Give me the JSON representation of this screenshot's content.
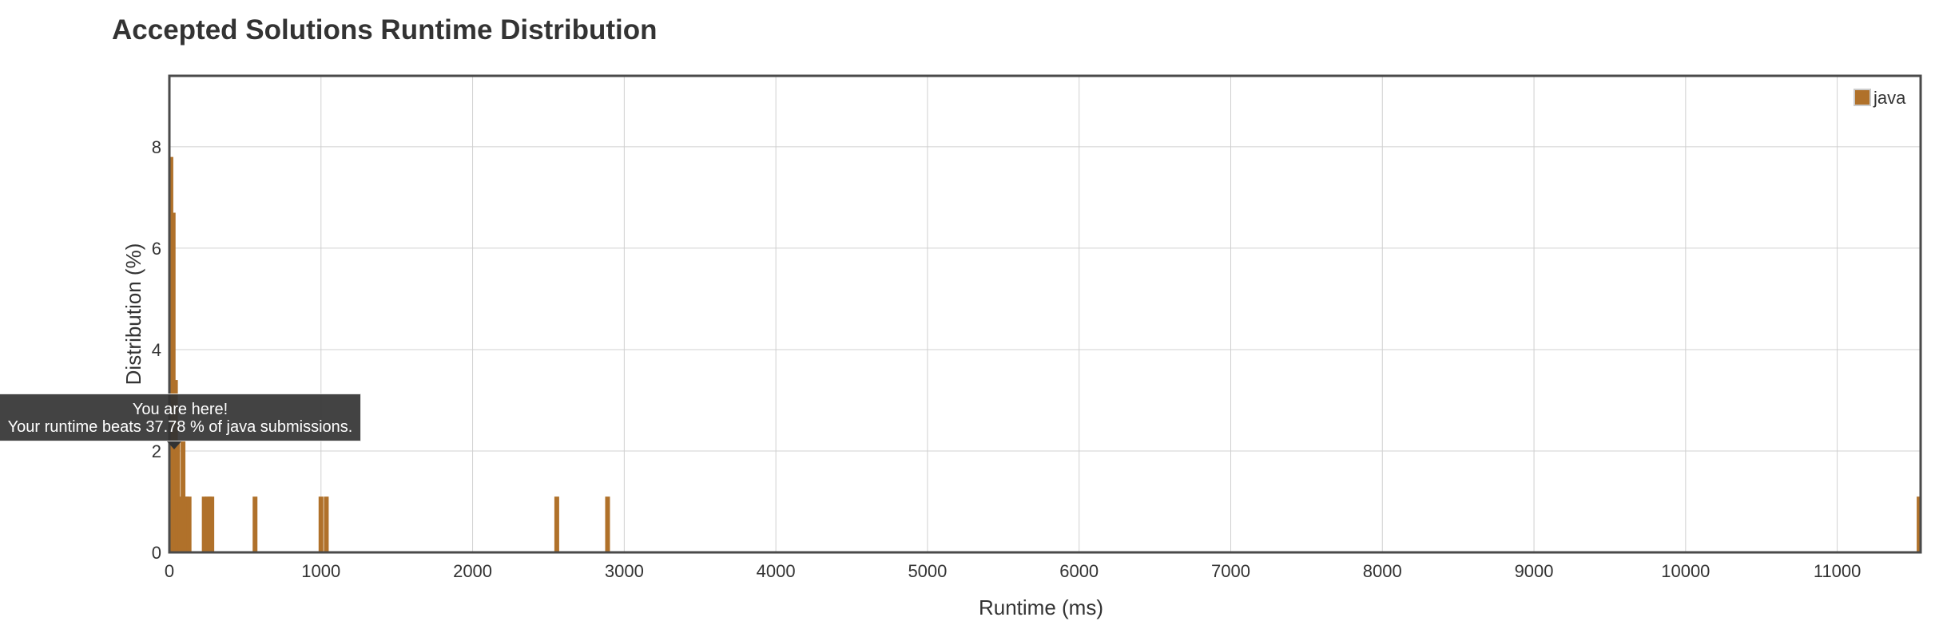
{
  "chart_data": {
    "type": "bar",
    "title": "Accepted Solutions Runtime Distribution",
    "xlabel": "Runtime (ms)",
    "ylabel": "Distribution (%)",
    "xlim": [
      0,
      11550
    ],
    "ylim": [
      0,
      9.4
    ],
    "x_ticks": [
      "0",
      "1000",
      "2000",
      "3000",
      "4000",
      "5000",
      "6000",
      "7000",
      "8000",
      "9000",
      "10000",
      "11000"
    ],
    "y_ticks": [
      "0",
      "2",
      "4",
      "6",
      "8"
    ],
    "grid": true,
    "legend_position": "top-right",
    "series": [
      {
        "name": "java",
        "color": "#b0712a",
        "points": [
          {
            "x": 10,
            "y": 7.8
          },
          {
            "x": 25,
            "y": 6.7
          },
          {
            "x": 40,
            "y": 3.4
          },
          {
            "x": 55,
            "y": 2.2
          },
          {
            "x": 70,
            "y": 1.1
          },
          {
            "x": 90,
            "y": 2.2
          },
          {
            "x": 100,
            "y": 1.1
          },
          {
            "x": 115,
            "y": 1.1
          },
          {
            "x": 130,
            "y": 1.1
          },
          {
            "x": 230,
            "y": 1.1
          },
          {
            "x": 250,
            "y": 1.1
          },
          {
            "x": 265,
            "y": 1.1
          },
          {
            "x": 280,
            "y": 1.1
          },
          {
            "x": 565,
            "y": 1.1
          },
          {
            "x": 1000,
            "y": 1.1
          },
          {
            "x": 1035,
            "y": 1.1
          },
          {
            "x": 2555,
            "y": 1.1
          },
          {
            "x": 2890,
            "y": 1.1
          },
          {
            "x": 11540,
            "y": 1.1
          }
        ]
      }
    ],
    "annotation": {
      "line1": "You are here!",
      "line2": "Your runtime beats 37.78 % of java submissions."
    }
  }
}
